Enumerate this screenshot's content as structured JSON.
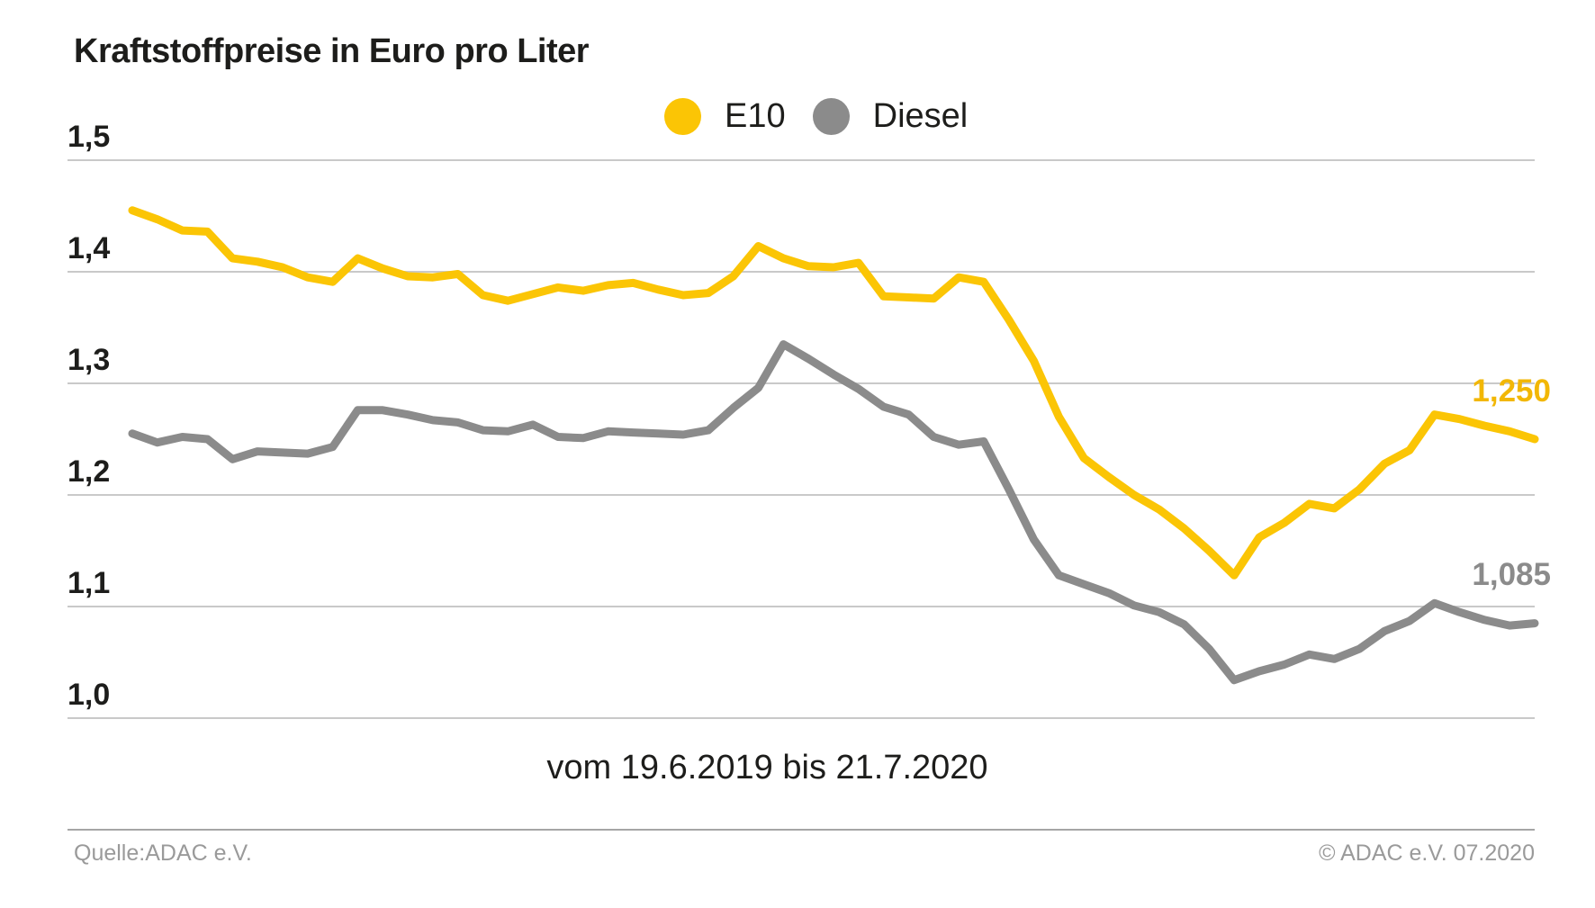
{
  "title": "Kraftstoffpreise in Euro pro Liter",
  "legend": {
    "items": [
      {
        "label": "E10",
        "color": "#fbc505"
      },
      {
        "label": "Diesel",
        "color": "#8b8b8b"
      }
    ]
  },
  "caption": "vom 19.6.2019 bis 21.7.2020",
  "end_labels": [
    {
      "text": "1,250",
      "color": "#f2b705"
    },
    {
      "text": "1,085",
      "color": "#8b8b8b"
    }
  ],
  "footer": {
    "source": "Quelle:ADAC e.V.",
    "copyright": "© ADAC e.V. 07.2020"
  },
  "chart_data": {
    "type": "line",
    "title": "Kraftstoffpreise in Euro pro Liter",
    "xlabel": "vom 19.6.2019 bis 21.7.2020",
    "ylabel": "Euro pro Liter",
    "x_range": {
      "start": "19.6.2019",
      "end": "21.7.2020",
      "points": 57,
      "interval": "weekly"
    },
    "ylim": [
      0.97,
      1.52
    ],
    "grid": true,
    "legend_position": "top-center",
    "y_axis_ticks": [
      {
        "value": 1.5,
        "label": "1,5"
      },
      {
        "value": 1.4,
        "label": "1,4"
      },
      {
        "value": 1.3,
        "label": "1,3"
      },
      {
        "value": 1.2,
        "label": "1,2"
      },
      {
        "value": 1.1,
        "label": "1,1"
      },
      {
        "value": 1.0,
        "label": "1,0"
      }
    ],
    "series": [
      {
        "name": "E10",
        "color": "#fbc505",
        "final_value_label": "1,250",
        "values": [
          1.455,
          1.447,
          1.437,
          1.436,
          1.412,
          1.409,
          1.404,
          1.395,
          1.391,
          1.412,
          1.403,
          1.396,
          1.395,
          1.398,
          1.379,
          1.374,
          1.38,
          1.386,
          1.383,
          1.388,
          1.39,
          1.384,
          1.379,
          1.381,
          1.396,
          1.423,
          1.412,
          1.405,
          1.404,
          1.408,
          1.378,
          1.377,
          1.376,
          1.395,
          1.391,
          1.357,
          1.32,
          1.27,
          1.233,
          1.216,
          1.2,
          1.187,
          1.17,
          1.15,
          1.128,
          1.162,
          1.175,
          1.192,
          1.188,
          1.205,
          1.228,
          1.24,
          1.272,
          1.268,
          1.262,
          1.257,
          1.25
        ]
      },
      {
        "name": "Diesel",
        "color": "#8b8b8b",
        "final_value_label": "1,085",
        "values": [
          1.255,
          1.247,
          1.252,
          1.25,
          1.232,
          1.239,
          1.238,
          1.237,
          1.243,
          1.276,
          1.276,
          1.272,
          1.267,
          1.265,
          1.258,
          1.257,
          1.263,
          1.252,
          1.251,
          1.257,
          1.256,
          1.255,
          1.254,
          1.258,
          1.278,
          1.296,
          1.335,
          1.322,
          1.308,
          1.295,
          1.279,
          1.272,
          1.252,
          1.245,
          1.248,
          1.205,
          1.16,
          1.128,
          1.12,
          1.112,
          1.101,
          1.095,
          1.084,
          1.062,
          1.034,
          1.042,
          1.048,
          1.057,
          1.053,
          1.062,
          1.078,
          1.087,
          1.103,
          1.095,
          1.088,
          1.083,
          1.085
        ]
      }
    ]
  }
}
